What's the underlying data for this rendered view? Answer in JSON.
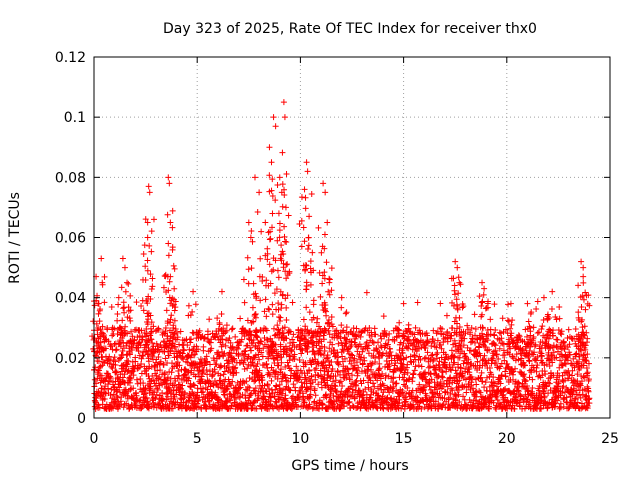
{
  "chart_data": {
    "type": "scatter",
    "title": "Day 323 of 2025, Rate Of TEC Index for receiver thx0",
    "xlabel": "GPS time / hours",
    "ylabel": "ROTI / TECUs",
    "xlim": [
      0,
      25
    ],
    "ylim": [
      0,
      0.12
    ],
    "x_ticks": [
      0,
      5,
      10,
      15,
      20,
      25
    ],
    "x_tick_labels": [
      "0",
      "5",
      "10",
      "15",
      "20",
      "25"
    ],
    "y_ticks": [
      0,
      0.02,
      0.04,
      0.06,
      0.08,
      0.1,
      0.12
    ],
    "y_tick_labels": [
      "0",
      "0.02",
      "0.04",
      "0.06",
      "0.08",
      "0.1",
      "0.12"
    ],
    "grid": true,
    "marker": "+",
    "series": [
      {
        "name": "ROTI",
        "color": "#ff0000",
        "points": [
          [
            0.1,
            0.047
          ],
          [
            0.2,
            0.038
          ],
          [
            0.35,
            0.053
          ],
          [
            0.4,
            0.045
          ],
          [
            1.4,
            0.053
          ],
          [
            1.5,
            0.05
          ],
          [
            1.6,
            0.045
          ],
          [
            2.6,
            0.065
          ],
          [
            2.65,
            0.077
          ],
          [
            2.7,
            0.075
          ],
          [
            2.6,
            0.06
          ],
          [
            3.6,
            0.08
          ],
          [
            3.65,
            0.078
          ],
          [
            3.7,
            0.065
          ],
          [
            3.6,
            0.058
          ],
          [
            3.7,
            0.047
          ],
          [
            7.5,
            0.065
          ],
          [
            7.6,
            0.06
          ],
          [
            7.8,
            0.08
          ],
          [
            8.0,
            0.075
          ],
          [
            8.3,
            0.065
          ],
          [
            8.5,
            0.09
          ],
          [
            8.6,
            0.085
          ],
          [
            8.7,
            0.1
          ],
          [
            8.8,
            0.097
          ],
          [
            9.0,
            0.08
          ],
          [
            9.1,
            0.075
          ],
          [
            9.2,
            0.105
          ],
          [
            9.25,
            0.1
          ],
          [
            9.3,
            0.07
          ],
          [
            10.2,
            0.076
          ],
          [
            10.3,
            0.085
          ],
          [
            10.35,
            0.082
          ],
          [
            10.4,
            0.06
          ],
          [
            11.1,
            0.078
          ],
          [
            11.2,
            0.075
          ],
          [
            11.3,
            0.065
          ],
          [
            11.4,
            0.045
          ],
          [
            17.5,
            0.052
          ],
          [
            17.6,
            0.05
          ],
          [
            17.7,
            0.045
          ],
          [
            18.8,
            0.045
          ],
          [
            18.9,
            0.043
          ],
          [
            20.2,
            0.038
          ],
          [
            21.0,
            0.038
          ],
          [
            21.8,
            0.04
          ],
          [
            22.2,
            0.042
          ],
          [
            23.6,
            0.052
          ],
          [
            23.7,
            0.05
          ],
          [
            23.7,
            0.047
          ],
          [
            6.2,
            0.042
          ],
          [
            15.0,
            0.038
          ],
          [
            4.8,
            0.042
          ],
          [
            1.2,
            0.04
          ],
          [
            12.0,
            0.04
          ]
        ],
        "band": {
          "x_range": [
            0,
            24
          ],
          "step_hours": 0.02,
          "typical_range": [
            0.003,
            0.03
          ]
        }
      }
    ]
  }
}
